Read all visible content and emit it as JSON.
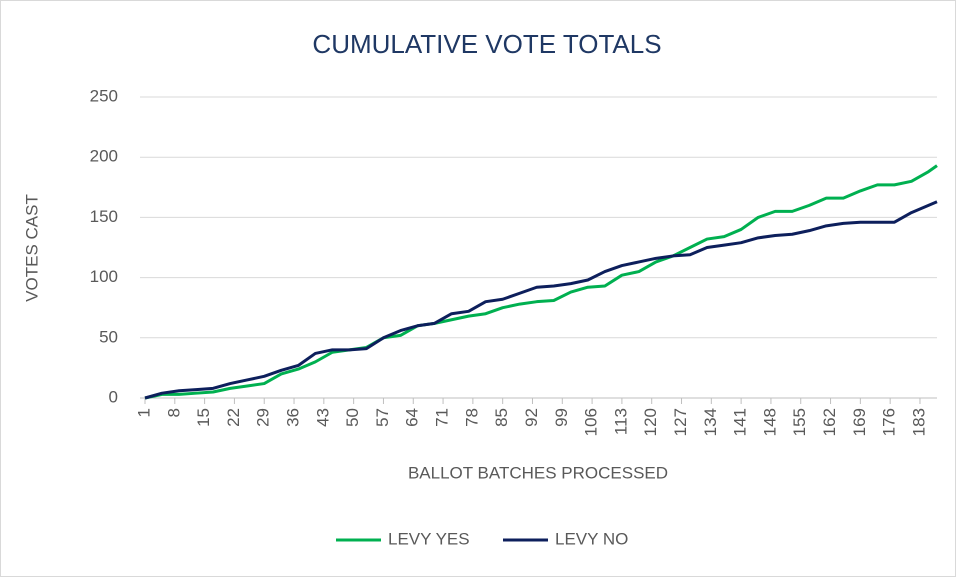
{
  "chart_data": {
    "type": "line",
    "title": "CUMULATIVE VOTE TOTALS",
    "x_label": "BALLOT BATCHES PROCESSED",
    "y_label": "VOTES CAST",
    "x": [
      1,
      5,
      9,
      13,
      17,
      21,
      25,
      29,
      33,
      37,
      41,
      45,
      49,
      53,
      57,
      61,
      65,
      69,
      73,
      77,
      81,
      85,
      89,
      93,
      97,
      101,
      105,
      109,
      113,
      117,
      121,
      125,
      129,
      133,
      137,
      141,
      145,
      149,
      153,
      157,
      161,
      165,
      169,
      173,
      177,
      181,
      185,
      187
    ],
    "series": [
      {
        "name": "LEVY YES",
        "color": "#00b050",
        "values": [
          0,
          3,
          3,
          4,
          5,
          8,
          10,
          12,
          20,
          24,
          30,
          38,
          40,
          42,
          50,
          52,
          60,
          62,
          65,
          68,
          70,
          75,
          78,
          80,
          81,
          88,
          92,
          93,
          102,
          105,
          113,
          118,
          125,
          132,
          134,
          140,
          150,
          155,
          155,
          160,
          166,
          166,
          172,
          177,
          177,
          180,
          188,
          193
        ]
      },
      {
        "name": "LEVY NO",
        "color": "#0d1f5c",
        "values": [
          0,
          4,
          6,
          7,
          8,
          12,
          15,
          18,
          23,
          27,
          37,
          40,
          40,
          41,
          50,
          56,
          60,
          62,
          70,
          72,
          80,
          82,
          87,
          92,
          93,
          95,
          98,
          105,
          110,
          113,
          116,
          118,
          119,
          125,
          127,
          129,
          133,
          135,
          136,
          139,
          143,
          145,
          146,
          146,
          146,
          154,
          160,
          163
        ]
      }
    ],
    "xlim": [
      1,
      187
    ],
    "xticks": [
      1,
      8,
      15,
      22,
      29,
      36,
      43,
      50,
      57,
      64,
      71,
      78,
      85,
      92,
      99,
      106,
      113,
      120,
      127,
      134,
      141,
      148,
      155,
      162,
      169,
      176,
      183
    ],
    "ylim": [
      0,
      250
    ],
    "yticks": [
      0,
      50,
      100,
      150,
      200,
      250
    ],
    "grid": true,
    "legend": "bottom"
  }
}
